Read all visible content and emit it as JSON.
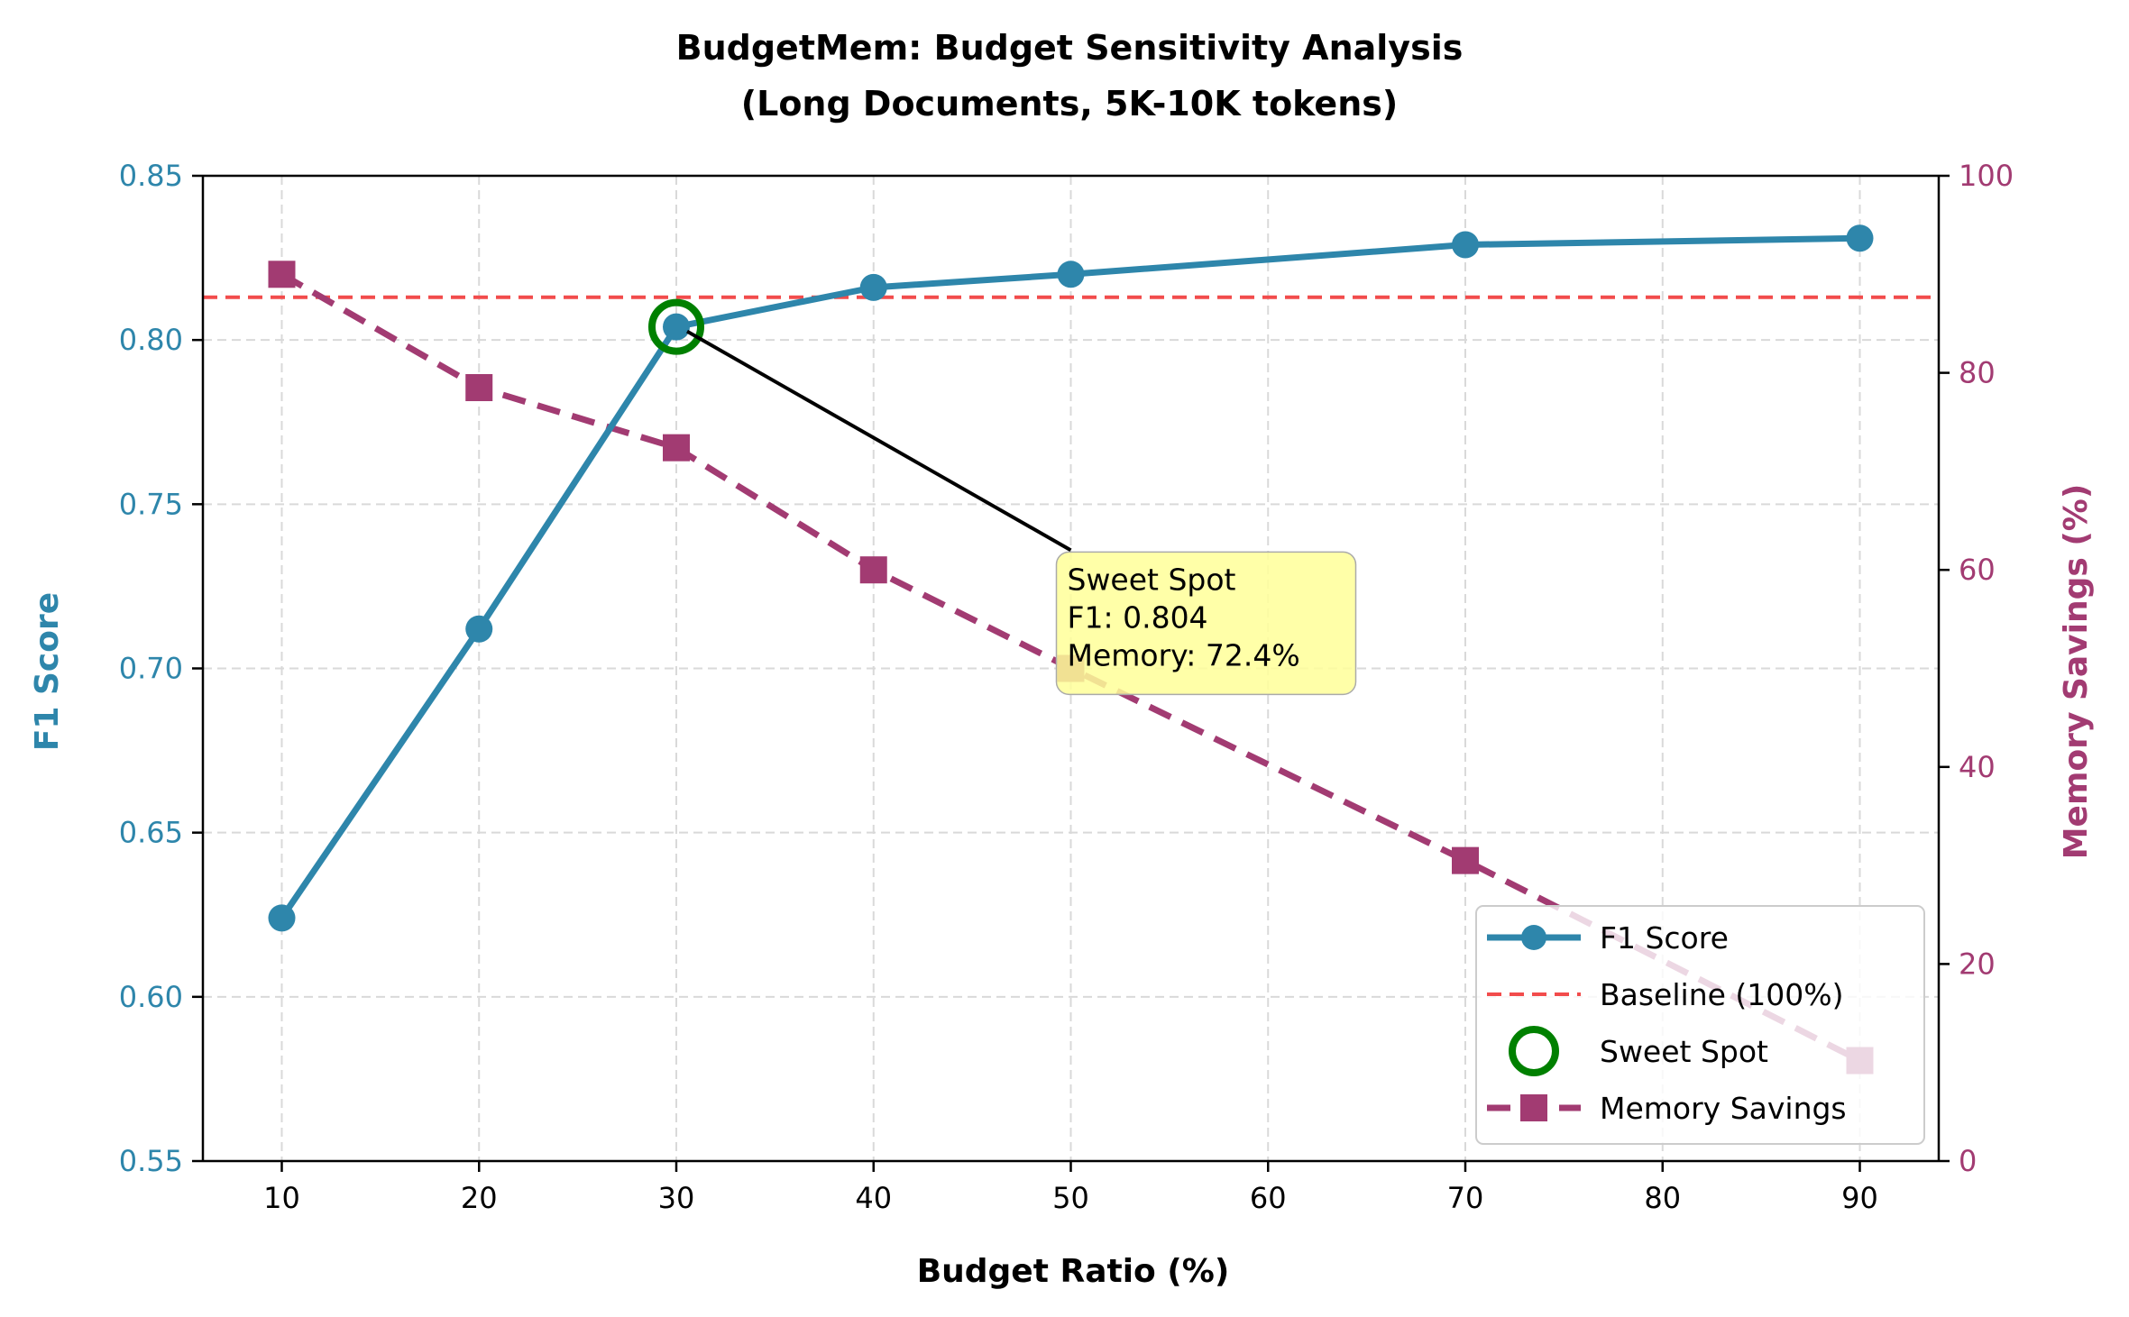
{
  "chart_data": {
    "type": "line",
    "title_line1": "BudgetMem: Budget Sensitivity Analysis",
    "title_line2": "(Long Documents, 5K-10K tokens)",
    "xlabel": "Budget Ratio (%)",
    "ylabel_left": "F1 Score",
    "ylabel_right": "Memory Savings (%)",
    "xlim": [
      6,
      94
    ],
    "ylim_left": [
      0.55,
      0.85
    ],
    "ylim_right": [
      0,
      100
    ],
    "x_ticks": [
      10,
      20,
      30,
      40,
      50,
      60,
      70,
      80,
      90
    ],
    "y_ticks_left": [
      "0.55",
      "0.60",
      "0.65",
      "0.70",
      "0.75",
      "0.80",
      "0.85"
    ],
    "y_ticks_right": [
      "0",
      "20",
      "40",
      "60",
      "80",
      "100"
    ],
    "grid": true,
    "x": [
      10,
      20,
      30,
      40,
      50,
      70,
      90
    ],
    "series": [
      {
        "name": "F1 Score",
        "axis": "left",
        "color": "#2E86AB",
        "marker": "circle",
        "style": "solid",
        "values": [
          0.624,
          0.712,
          0.804,
          0.816,
          0.82,
          0.829,
          0.831
        ]
      },
      {
        "name": "Memory Savings",
        "axis": "right",
        "color": "#A23B72",
        "marker": "square",
        "style": "dashed",
        "values": [
          90.0,
          78.5,
          72.4,
          60.0,
          50.0,
          30.5,
          10.2
        ]
      }
    ],
    "baseline": {
      "name": "Baseline (100%)",
      "value": 0.813,
      "color": "#F24C4C"
    },
    "sweet_spot": {
      "name": "Sweet Spot",
      "x": 30,
      "y": 0.804,
      "color": "#008000"
    },
    "annotation": {
      "lines": [
        "Sweet Spot",
        "F1: 0.804",
        "Memory: 72.4%"
      ],
      "anchor_x": 30,
      "anchor_y": 0.804,
      "text_x": 50,
      "text_y": 0.736,
      "box_color": "#FFFF99"
    },
    "legend": {
      "placement": "lower-right",
      "entries": [
        "F1 Score",
        "Baseline (100%)",
        "Sweet Spot",
        "Memory Savings"
      ]
    }
  }
}
